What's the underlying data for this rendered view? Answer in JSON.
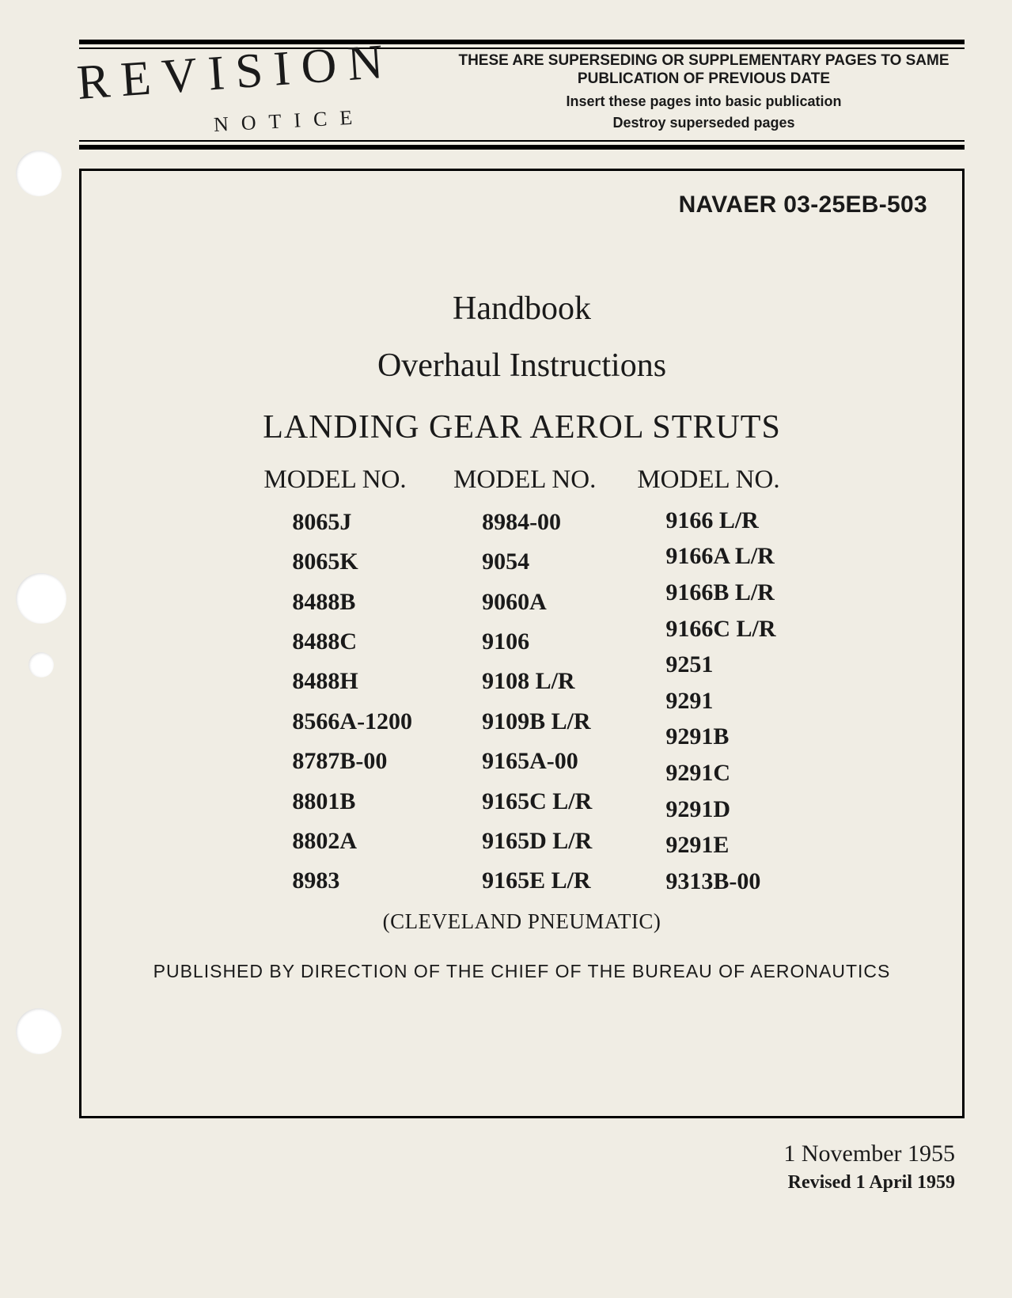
{
  "header": {
    "stamp_main": "REVISION",
    "stamp_sub": "NOTICE",
    "supersede_line": "THESE ARE SUPERSEDING OR SUPPLEMENTARY PAGES TO SAME PUBLICATION OF PREVIOUS DATE",
    "supersede_sub1": "Insert these pages into basic publication",
    "supersede_sub2": "Destroy superseded pages"
  },
  "doc_id": "NAVAER 03-25EB-503",
  "title1": "Handbook",
  "title2": "Overhaul Instructions",
  "title3": "LANDING GEAR AEROL STRUTS",
  "col_header": "MODEL NO.",
  "models": {
    "col1": [
      "8065J",
      "8065K",
      "8488B",
      "8488C",
      "8488H",
      "8566A-1200",
      "8787B-00",
      "8801B",
      "8802A",
      "8983"
    ],
    "col2": [
      "8984-00",
      "9054",
      "9060A",
      "9106",
      "9108 L/R",
      "9109B L/R",
      "9165A-00",
      "9165C L/R",
      "9165D L/R",
      "9165E L/R"
    ],
    "col3": [
      "9166 L/R",
      "9166A L/R",
      "9166B L/R",
      "9166C L/R",
      "9251",
      "9291",
      "9291B",
      "9291C",
      "9291D",
      "9291E",
      "9313B-00"
    ]
  },
  "manufacturer": "(CLEVELAND PNEUMATIC)",
  "published_by": "PUBLISHED BY DIRECTION OF THE CHIEF OF THE BUREAU OF AERONAUTICS",
  "date_main": "1 November 1955",
  "date_revised": "Revised 1 April 1959",
  "colors": {
    "paper": "#f0ede4",
    "ink": "#1a1a1a"
  }
}
